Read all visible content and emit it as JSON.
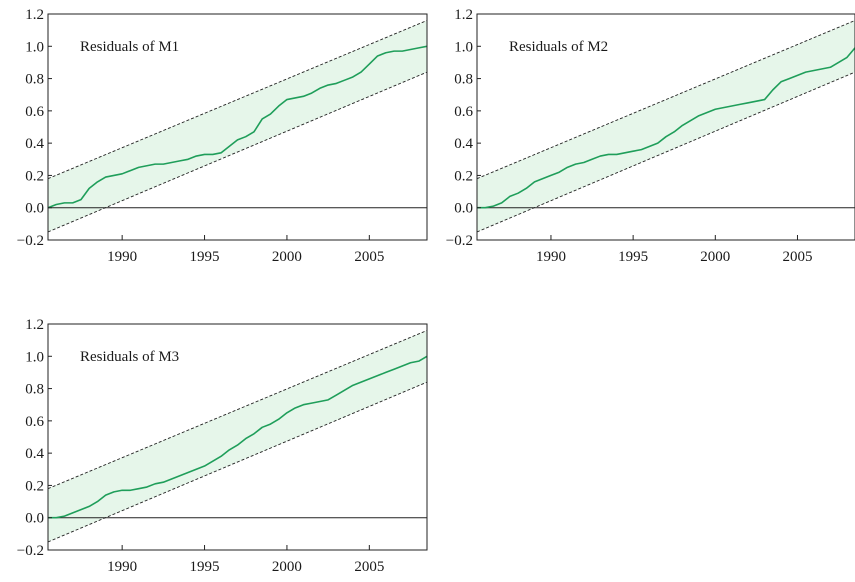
{
  "chart_data": [
    {
      "type": "line",
      "title": "Residuals of M1",
      "xlim": [
        1985.5,
        2008.5
      ],
      "ylim": [
        -0.2,
        1.2
      ],
      "xticks": [
        "1990",
        "1995",
        "2000",
        "2005"
      ],
      "yticks": [
        "1.2",
        "1.0",
        "0.8",
        "0.6",
        "0.4",
        "0.2",
        "0.0",
        "−0.2"
      ],
      "zero_line": true,
      "band": {
        "upper": [
          [
            1985.5,
            0.18
          ],
          [
            2008.5,
            1.16
          ]
        ],
        "lower": [
          [
            1985.5,
            -0.15
          ],
          [
            2008.5,
            0.84
          ]
        ]
      },
      "series": [
        {
          "x": [
            1985.5,
            1986.0,
            1986.5,
            1987.0,
            1987.5,
            1988.0,
            1988.5,
            1989.0,
            1989.5,
            1990.0,
            1990.5,
            1991.0,
            1991.5,
            1992.0,
            1992.5,
            1993.0,
            1993.5,
            1994.0,
            1994.5,
            1995.0,
            1995.5,
            1996.0,
            1996.5,
            1997.0,
            1997.5,
            1998.0,
            1998.5,
            1999.0,
            1999.5,
            2000.0,
            2000.5,
            2001.0,
            2001.5,
            2002.0,
            2002.5,
            2003.0,
            2003.5,
            2004.0,
            2004.5,
            2005.0,
            2005.5,
            2006.0,
            2006.5,
            2007.0,
            2007.5,
            2008.0,
            2008.5
          ],
          "y": [
            0.0,
            0.02,
            0.03,
            0.03,
            0.05,
            0.12,
            0.16,
            0.19,
            0.2,
            0.21,
            0.23,
            0.25,
            0.26,
            0.27,
            0.27,
            0.28,
            0.29,
            0.3,
            0.32,
            0.33,
            0.33,
            0.34,
            0.38,
            0.42,
            0.44,
            0.47,
            0.55,
            0.58,
            0.63,
            0.67,
            0.68,
            0.69,
            0.71,
            0.74,
            0.76,
            0.77,
            0.79,
            0.81,
            0.84,
            0.89,
            0.94,
            0.96,
            0.97,
            0.97,
            0.98,
            0.99,
            1.0
          ]
        }
      ]
    },
    {
      "type": "line",
      "title": "Residuals of M2",
      "xlim": [
        1985.5,
        2008.5
      ],
      "ylim": [
        -0.2,
        1.2
      ],
      "xticks": [
        "1990",
        "1995",
        "2000",
        "2005"
      ],
      "yticks": [
        "1.2",
        "1.0",
        "0.8",
        "0.6",
        "0.4",
        "0.2",
        "0.0",
        "−0.2"
      ],
      "zero_line": true,
      "band": {
        "upper": [
          [
            1985.5,
            0.18
          ],
          [
            2008.5,
            1.16
          ]
        ],
        "lower": [
          [
            1985.5,
            -0.15
          ],
          [
            2008.5,
            0.84
          ]
        ]
      },
      "series": [
        {
          "x": [
            1985.5,
            1986.0,
            1986.5,
            1987.0,
            1987.5,
            1988.0,
            1988.5,
            1989.0,
            1989.5,
            1990.0,
            1990.5,
            1991.0,
            1991.5,
            1992.0,
            1992.5,
            1993.0,
            1993.5,
            1994.0,
            1994.5,
            1995.0,
            1995.5,
            1996.0,
            1996.5,
            1997.0,
            1997.5,
            1998.0,
            1998.5,
            1999.0,
            1999.5,
            2000.0,
            2000.5,
            2001.0,
            2001.5,
            2002.0,
            2002.5,
            2003.0,
            2003.5,
            2004.0,
            2004.5,
            2005.0,
            2005.5,
            2006.0,
            2006.5,
            2007.0,
            2007.5,
            2008.0,
            2008.5
          ],
          "y": [
            0.0,
            0.0,
            0.01,
            0.03,
            0.07,
            0.09,
            0.12,
            0.16,
            0.18,
            0.2,
            0.22,
            0.25,
            0.27,
            0.28,
            0.3,
            0.32,
            0.33,
            0.33,
            0.34,
            0.35,
            0.36,
            0.38,
            0.4,
            0.44,
            0.47,
            0.51,
            0.54,
            0.57,
            0.59,
            0.61,
            0.62,
            0.63,
            0.64,
            0.65,
            0.66,
            0.67,
            0.73,
            0.78,
            0.8,
            0.82,
            0.84,
            0.85,
            0.86,
            0.87,
            0.9,
            0.93,
            0.99
          ]
        }
      ]
    },
    {
      "type": "line",
      "title": "Residuals of M3",
      "xlim": [
        1985.5,
        2008.5
      ],
      "ylim": [
        -0.2,
        1.2
      ],
      "xticks": [
        "1990",
        "1995",
        "2000",
        "2005"
      ],
      "yticks": [
        "1.2",
        "1.0",
        "0.8",
        "0.6",
        "0.4",
        "0.2",
        "0.0",
        "−0.2"
      ],
      "zero_line": true,
      "band": {
        "upper": [
          [
            1985.5,
            0.18
          ],
          [
            2008.5,
            1.16
          ]
        ],
        "lower": [
          [
            1985.5,
            -0.15
          ],
          [
            2008.5,
            0.84
          ]
        ]
      },
      "series": [
        {
          "x": [
            1985.5,
            1986.0,
            1986.5,
            1987.0,
            1987.5,
            1988.0,
            1988.5,
            1989.0,
            1989.5,
            1990.0,
            1990.5,
            1991.0,
            1991.5,
            1992.0,
            1992.5,
            1993.0,
            1993.5,
            1994.0,
            1994.5,
            1995.0,
            1995.5,
            1996.0,
            1996.5,
            1997.0,
            1997.5,
            1998.0,
            1998.5,
            1999.0,
            1999.5,
            2000.0,
            2000.5,
            2001.0,
            2001.5,
            2002.0,
            2002.5,
            2003.0,
            2003.5,
            2004.0,
            2004.5,
            2005.0,
            2005.5,
            2006.0,
            2006.5,
            2007.0,
            2007.5,
            2008.0,
            2008.5
          ],
          "y": [
            0.0,
            0.0,
            0.01,
            0.03,
            0.05,
            0.07,
            0.1,
            0.14,
            0.16,
            0.17,
            0.17,
            0.18,
            0.19,
            0.21,
            0.22,
            0.24,
            0.26,
            0.28,
            0.3,
            0.32,
            0.35,
            0.38,
            0.42,
            0.45,
            0.49,
            0.52,
            0.56,
            0.58,
            0.61,
            0.65,
            0.68,
            0.7,
            0.71,
            0.72,
            0.73,
            0.76,
            0.79,
            0.82,
            0.84,
            0.86,
            0.88,
            0.9,
            0.92,
            0.94,
            0.96,
            0.97,
            1.0
          ]
        }
      ]
    }
  ]
}
